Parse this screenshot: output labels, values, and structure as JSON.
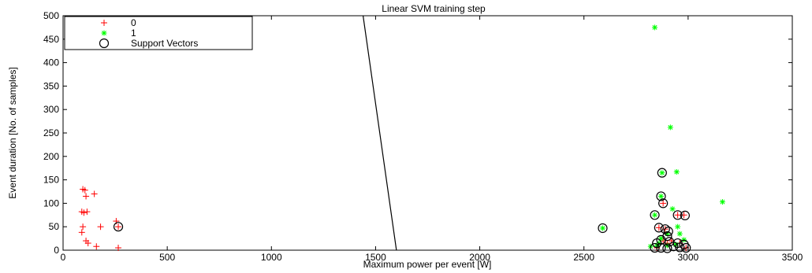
{
  "chart_data": {
    "type": "scatter",
    "title": "Linear SVM training step",
    "xlabel": "Maximum power per event [W]",
    "ylabel": "Event duration [No. of samples]",
    "xlim": [
      0,
      3500
    ],
    "ylim": [
      0,
      500
    ],
    "xticks": [
      0,
      500,
      1000,
      1500,
      2000,
      2500,
      3000,
      3500
    ],
    "yticks": [
      0,
      50,
      100,
      150,
      200,
      250,
      300,
      350,
      400,
      450,
      500
    ],
    "grid": false,
    "legend_position": "top-left",
    "colors": {
      "class0": "#ff0000",
      "class1": "#00ff00",
      "support": "#000000",
      "boundary": "#000000"
    },
    "series": [
      {
        "name": "0",
        "marker": "plus",
        "points": [
          [
            95,
            130
          ],
          [
            105,
            128
          ],
          [
            150,
            120
          ],
          [
            110,
            115
          ],
          [
            90,
            82
          ],
          [
            100,
            80
          ],
          [
            115,
            82
          ],
          [
            95,
            50
          ],
          [
            180,
            50
          ],
          [
            90,
            38
          ],
          [
            255,
            62
          ],
          [
            265,
            50
          ],
          [
            110,
            20
          ],
          [
            120,
            15
          ],
          [
            160,
            8
          ],
          [
            265,
            5
          ],
          [
            2890,
            45
          ],
          [
            2860,
            48
          ],
          [
            2880,
            100
          ],
          [
            2950,
            75
          ],
          [
            2980,
            75
          ],
          [
            2880,
            20
          ],
          [
            2920,
            20
          ],
          [
            2900,
            15
          ],
          [
            2960,
            15
          ],
          [
            2990,
            5
          ],
          [
            2850,
            5
          ]
        ]
      },
      {
        "name": "1",
        "marker": "star",
        "points": [
          [
            2840,
            475
          ],
          [
            2915,
            262
          ],
          [
            2875,
            165
          ],
          [
            2945,
            167
          ],
          [
            3165,
            103
          ],
          [
            2870,
            115
          ],
          [
            2925,
            88
          ],
          [
            2840,
            75
          ],
          [
            2950,
            50
          ],
          [
            2900,
            35
          ],
          [
            2960,
            35
          ],
          [
            2590,
            47
          ],
          [
            2870,
            25
          ],
          [
            2980,
            22
          ],
          [
            2860,
            15
          ],
          [
            2900,
            10
          ],
          [
            2940,
            12
          ],
          [
            2820,
            8
          ],
          [
            2850,
            10
          ]
        ]
      },
      {
        "name": "Support Vectors",
        "marker": "circle",
        "points": [
          [
            265,
            50
          ],
          [
            2590,
            47
          ],
          [
            2875,
            165
          ],
          [
            2870,
            115
          ],
          [
            2880,
            100
          ],
          [
            2840,
            75
          ],
          [
            2950,
            75
          ],
          [
            2985,
            74
          ],
          [
            2860,
            48
          ],
          [
            2890,
            45
          ],
          [
            2905,
            40
          ],
          [
            2900,
            30
          ],
          [
            2870,
            22
          ],
          [
            2910,
            18
          ],
          [
            2950,
            15
          ],
          [
            2980,
            12
          ],
          [
            2850,
            15
          ],
          [
            2930,
            8
          ],
          [
            2960,
            6
          ],
          [
            2840,
            5
          ],
          [
            2870,
            5
          ],
          [
            2900,
            4
          ],
          [
            2990,
            5
          ]
        ]
      }
    ],
    "boundary_line": {
      "name": "decision boundary",
      "x": [
        1440,
        1600
      ],
      "y": [
        500,
        0
      ]
    }
  }
}
